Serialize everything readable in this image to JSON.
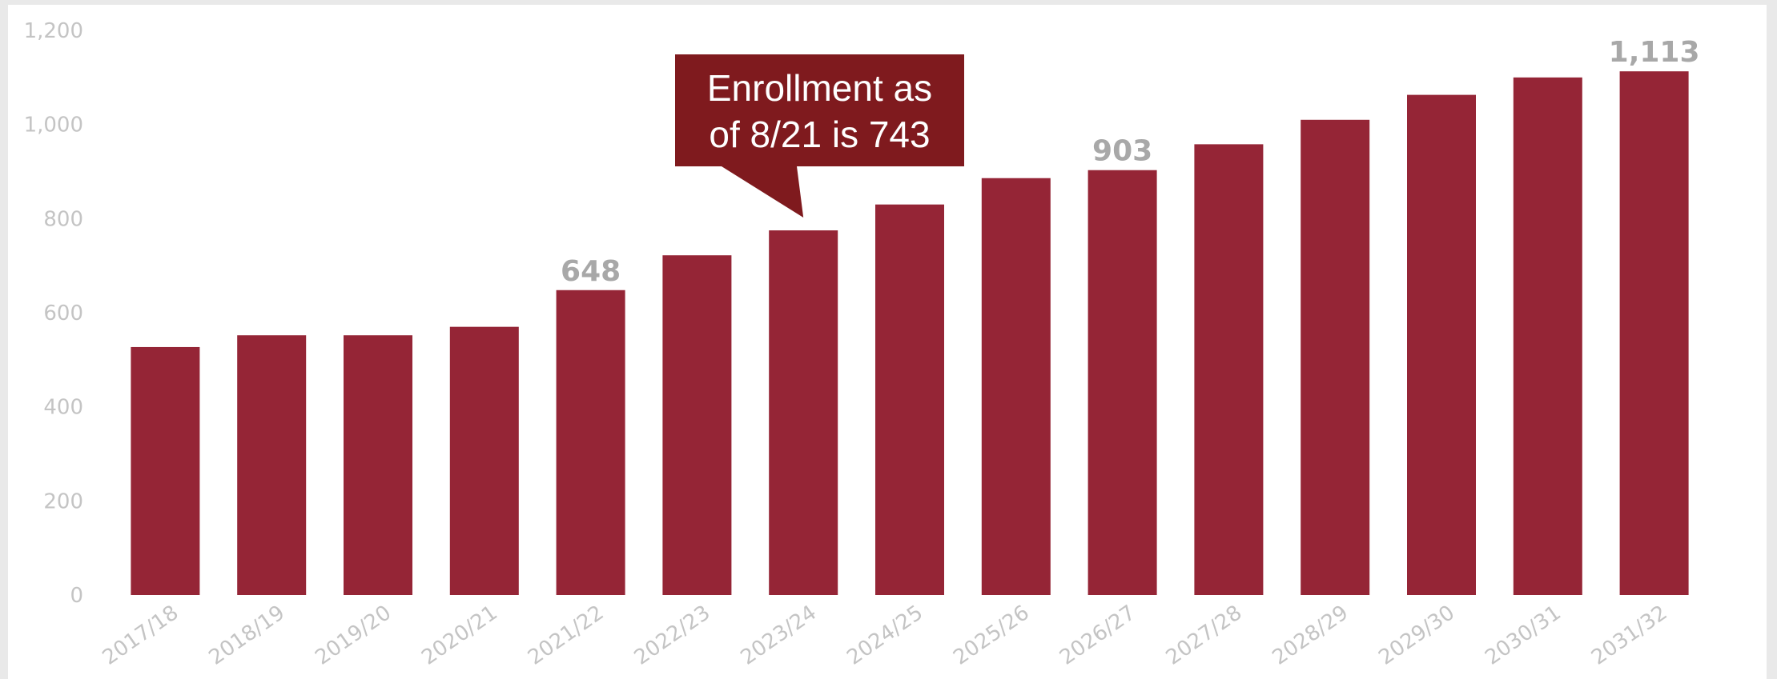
{
  "chart_data": {
    "type": "bar",
    "title": "",
    "xlabel": "",
    "ylabel": "",
    "ylim": [
      0,
      1200
    ],
    "yticks": [
      "0",
      "200",
      "400",
      "600",
      "800",
      "1,000",
      "1,200"
    ],
    "ytick_values": [
      0,
      200,
      400,
      600,
      800,
      1000,
      1200
    ],
    "categories": [
      "2017/18",
      "2018/19",
      "2019/20",
      "2020/21",
      "2021/22",
      "2022/23",
      "2023/24",
      "2024/25",
      "2025/26",
      "2026/27",
      "2027/28",
      "2028/29",
      "2029/30",
      "2030/31",
      "2031/32"
    ],
    "values": [
      527,
      552,
      552,
      570,
      648,
      722,
      775,
      830,
      886,
      903,
      958,
      1010,
      1063,
      1100,
      1113
    ],
    "data_labels": [
      {
        "index": 4,
        "text": "648"
      },
      {
        "index": 9,
        "text": "903"
      },
      {
        "index": 14,
        "text": "1,113"
      }
    ],
    "bar_color": "#952536",
    "grid": false,
    "callout": {
      "lines": [
        "Enrollment as",
        "of 8/21 is 743"
      ],
      "points_to_index": 6,
      "color": "#7f1a1e"
    }
  }
}
